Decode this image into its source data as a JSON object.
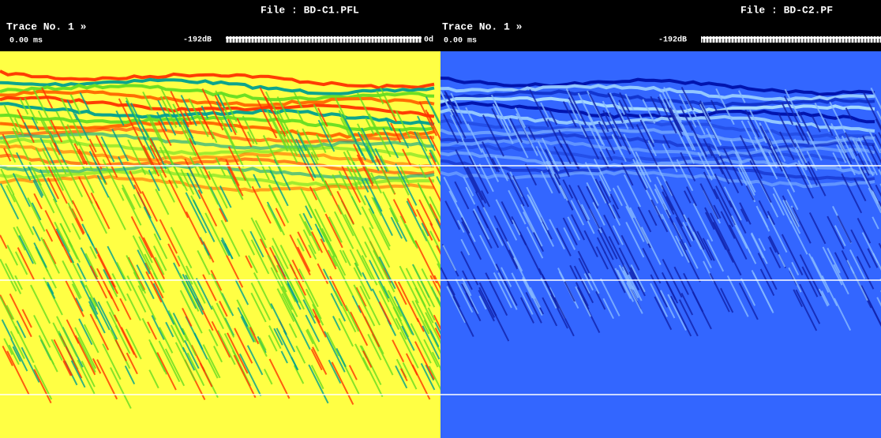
{
  "panels": [
    {
      "file": "File : BD-C1.PFL",
      "trace": "Trace No. 1 »",
      "time": "0.00 ms",
      "gain_min": "-192dB",
      "gain_max": "0d"
    },
    {
      "file": "File : BD-C2.PF",
      "trace": "Trace No. 1 »",
      "time": "0.00 ms",
      "gain_min": "-192dB"
    }
  ]
}
